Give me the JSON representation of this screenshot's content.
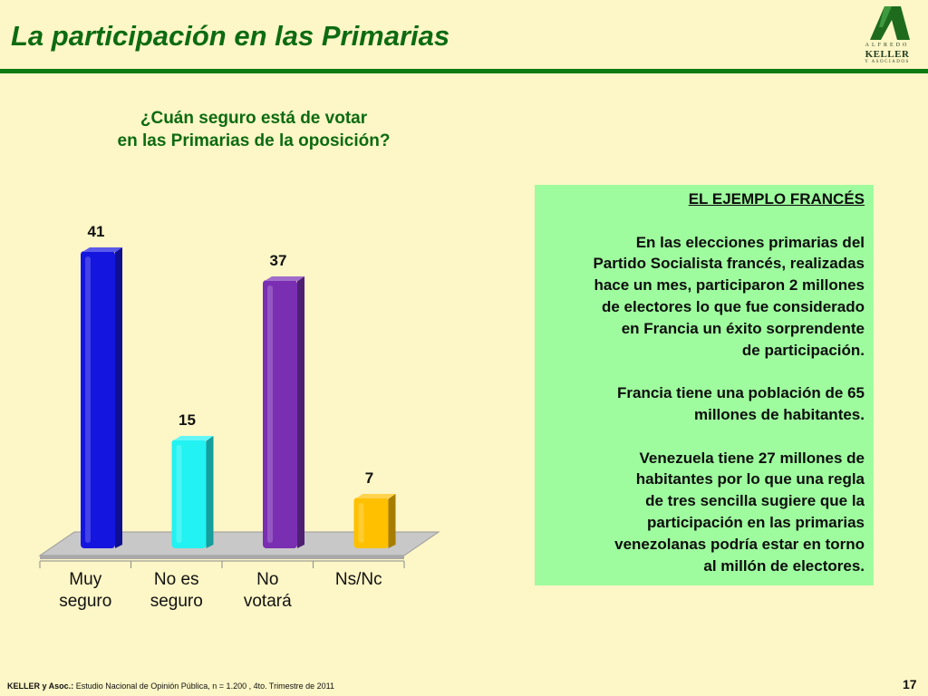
{
  "header": {
    "title": "La participación en las Primarias",
    "logo": {
      "top": "ALFREDO",
      "main": "KELLER",
      "sub": "Y ASOCIADOS"
    }
  },
  "question": {
    "line1": "¿Cuán seguro está de votar",
    "line2": "en las Primarias de la oposición?"
  },
  "chart_data": {
    "type": "bar",
    "categories": [
      "Muy\nseguro",
      "No es\nseguro",
      "No\nvotará",
      "Ns/Nc"
    ],
    "values": [
      41,
      15,
      37,
      7
    ],
    "colors": [
      "#1515e0",
      "#22f2f2",
      "#7a2fb3",
      "#ffc000"
    ],
    "ylim": [
      0,
      45
    ],
    "grid": false,
    "legend": "none",
    "data_labels": true,
    "style": "3d"
  },
  "info_box": {
    "heading": "EL EJEMPLO FRANCÉS",
    "paragraphs": [
      [
        "En las elecciones primarias del",
        "Partido Socialista francés, realizadas",
        "hace un mes, participaron 2 millones",
        "de electores lo que fue considerado",
        "en Francia un éxito sorprendente",
        "de participación."
      ],
      [
        "Francia tiene una población de 65",
        "millones de habitantes."
      ],
      [
        "Venezuela tiene 27 millones de",
        "habitantes por lo que una regla",
        "de tres sencilla sugiere que la",
        "participación en las primarias",
        "venezolanas podría estar en torno",
        "al millón de electores."
      ]
    ]
  },
  "footer": {
    "source_label": "KELLER y Asoc.:",
    "source_text": "Estudio Nacional de Opinión Pública, n = 1.200 , 4to. Trimestre de 2011",
    "page_number": "17"
  }
}
